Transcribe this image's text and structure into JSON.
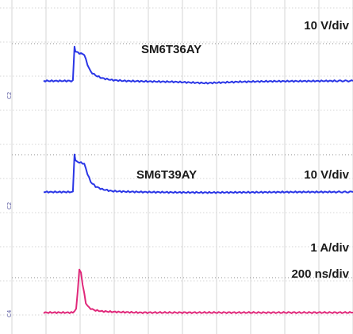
{
  "chart_data": [
    {
      "type": "line",
      "device": "SM6T36AY",
      "scale": "10 V/div",
      "channel_marker": "C2",
      "color": "#2a36e6",
      "y_unit": "div",
      "x_unit": "div",
      "xlim": [
        0,
        10
      ],
      "x": [
        0,
        0.9,
        0.95,
        0.98,
        1.05,
        1.25,
        1.35,
        1.45,
        1.6,
        1.8,
        2.1,
        2.5,
        3.0,
        4.0,
        5.0,
        6.0,
        7.0,
        8.0,
        9.0,
        10.0
      ],
      "values": [
        0,
        0,
        1.9,
        1.6,
        1.55,
        1.45,
        0.9,
        0.5,
        0.3,
        0.15,
        0.05,
        0,
        -0.02,
        -0.05,
        -0.12,
        -0.05,
        -0.02,
        -0.01,
        0,
        0
      ]
    },
    {
      "type": "line",
      "device": "SM6T39AY",
      "scale": "10 V/div",
      "channel_marker": "C2",
      "color": "#2a36e6",
      "y_unit": "div",
      "x_unit": "div",
      "xlim": [
        0,
        10
      ],
      "x": [
        0,
        0.9,
        0.95,
        0.98,
        1.05,
        1.25,
        1.35,
        1.45,
        1.6,
        1.8,
        2.1,
        2.5,
        3.0,
        4.0,
        5.0,
        6.0,
        7.0,
        8.0,
        9.0,
        10.0
      ],
      "values": [
        0,
        0,
        2.1,
        1.7,
        1.65,
        1.55,
        1.0,
        0.55,
        0.3,
        0.15,
        0.05,
        0.02,
        0,
        -0.02,
        -0.03,
        -0.02,
        -0.01,
        0,
        0,
        0
      ]
    },
    {
      "type": "line",
      "scale": "1 A/div",
      "timebase": "200 ns/div",
      "channel_marker": "C4",
      "color": "#e0287a",
      "y_unit": "div",
      "x_unit": "div",
      "xlim": [
        0,
        10
      ],
      "x": [
        0,
        0.9,
        1.0,
        1.05,
        1.1,
        1.15,
        1.2,
        1.3,
        1.4,
        1.55,
        1.8,
        2.2,
        3.0,
        5.0,
        7.0,
        10.0
      ],
      "values": [
        0,
        0,
        0.1,
        0.7,
        1.35,
        1.25,
        0.9,
        0.3,
        0.15,
        0.08,
        0.04,
        0.02,
        0,
        0,
        0,
        0
      ]
    }
  ]
}
